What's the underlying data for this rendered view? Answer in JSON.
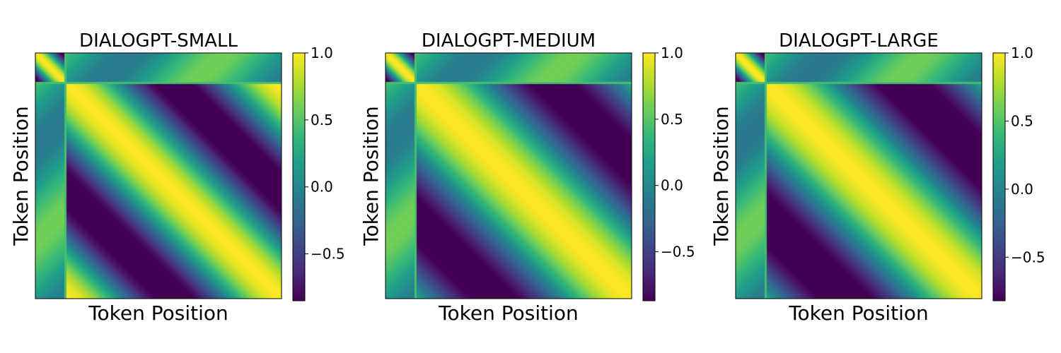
{
  "chart_data": [
    {
      "type": "heatmap",
      "title": "DIALOGPT-SMALL",
      "xlabel": "Token Position",
      "ylabel": "Token Position",
      "colormap": "viridis",
      "colorbar": {
        "range": [
          -0.85,
          1.0
        ],
        "ticks": [
          1.0,
          0.5,
          0.0,
          -0.5
        ],
        "tick_labels": [
          "1.0",
          "0.5",
          "0.0",
          "−0.5"
        ]
      },
      "pattern": {
        "cycles": 1.15,
        "prefix_fraction": 0.12,
        "min_value": -0.85
      }
    },
    {
      "type": "heatmap",
      "title": "DIALOGPT-MEDIUM",
      "xlabel": "Token Position",
      "ylabel": "Token Position",
      "colormap": "viridis",
      "colorbar": {
        "range": [
          -0.87,
          1.0
        ],
        "ticks": [
          1.0,
          0.5,
          0.0,
          -0.5
        ],
        "tick_labels": [
          "1.0",
          "0.5",
          "0.0",
          "−0.5"
        ]
      },
      "pattern": {
        "cycles": 0.9,
        "prefix_fraction": 0.12,
        "min_value": -0.87
      }
    },
    {
      "type": "heatmap",
      "title": "DIALOGPT-LARGE",
      "xlabel": "Token Position",
      "ylabel": "Token Position",
      "colormap": "viridis",
      "colorbar": {
        "range": [
          -0.82,
          1.0
        ],
        "ticks": [
          1.0,
          0.5,
          0.0,
          -0.5
        ],
        "tick_labels": [
          "1.0",
          "0.5",
          "0.0",
          "−0.5"
        ]
      },
      "pattern": {
        "cycles": 0.9,
        "prefix_fraction": 0.12,
        "min_value": -0.82
      }
    }
  ],
  "colors": {
    "viridis_stops": [
      "#440154",
      "#482878",
      "#3e4989",
      "#31688e",
      "#26828e",
      "#1f9e89",
      "#35b779",
      "#6ece58",
      "#b5de2b",
      "#fde725"
    ]
  }
}
